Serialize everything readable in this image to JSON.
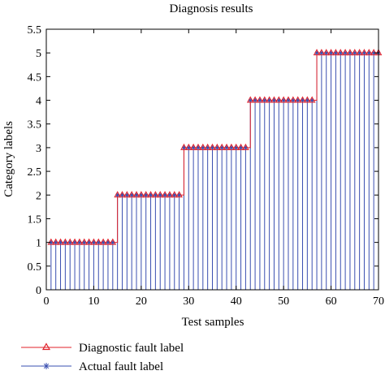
{
  "chart_data": {
    "type": "scatter",
    "title": "Diagnosis results",
    "xlabel": "Test samples",
    "ylabel": "Category labels",
    "xlim": [
      0,
      70
    ],
    "ylim": [
      0,
      5.5
    ],
    "xticks": [
      0,
      10,
      20,
      30,
      40,
      50,
      60,
      70
    ],
    "yticks": [
      0,
      0.5,
      1,
      1.5,
      2,
      2.5,
      3,
      3.5,
      4,
      4.5,
      5,
      5.5
    ],
    "grid": false,
    "legend_position": "bottom-left, below axes",
    "x": [
      1,
      2,
      3,
      4,
      5,
      6,
      7,
      8,
      9,
      10,
      11,
      12,
      13,
      14,
      15,
      16,
      17,
      18,
      19,
      20,
      21,
      22,
      23,
      24,
      25,
      26,
      27,
      28,
      29,
      30,
      31,
      32,
      33,
      34,
      35,
      36,
      37,
      38,
      39,
      40,
      41,
      42,
      43,
      44,
      45,
      46,
      47,
      48,
      49,
      50,
      51,
      52,
      53,
      54,
      55,
      56,
      57,
      58,
      59,
      60,
      61,
      62,
      63,
      64,
      65,
      66,
      67,
      68,
      69,
      70
    ],
    "series": [
      {
        "name": "Diagnostic fault label",
        "color": "#e0202a",
        "marker": "triangle",
        "values": [
          1,
          1,
          1,
          1,
          1,
          1,
          1,
          1,
          1,
          1,
          1,
          1,
          1,
          1,
          2,
          2,
          2,
          2,
          2,
          2,
          2,
          2,
          2,
          2,
          2,
          2,
          2,
          2,
          3,
          3,
          3,
          3,
          3,
          3,
          3,
          3,
          3,
          3,
          3,
          3,
          3,
          3,
          4,
          4,
          4,
          4,
          4,
          4,
          4,
          4,
          4,
          4,
          4,
          4,
          4,
          4,
          5,
          5,
          5,
          5,
          5,
          5,
          5,
          5,
          5,
          5,
          5,
          5,
          5,
          5
        ]
      },
      {
        "name": "Actual fault label",
        "color": "#3a4fb0",
        "marker": "star",
        "values": [
          1,
          1,
          1,
          1,
          1,
          1,
          1,
          1,
          1,
          1,
          1,
          1,
          1,
          1,
          2,
          2,
          2,
          2,
          2,
          2,
          2,
          2,
          2,
          2,
          2,
          2,
          2,
          2,
          3,
          3,
          3,
          3,
          3,
          3,
          3,
          3,
          3,
          3,
          3,
          3,
          3,
          3,
          4,
          4,
          4,
          4,
          4,
          4,
          4,
          4,
          4,
          4,
          4,
          4,
          4,
          4,
          5,
          5,
          5,
          5,
          5,
          5,
          5,
          5,
          5,
          5,
          5,
          5,
          5,
          5
        ]
      }
    ]
  }
}
